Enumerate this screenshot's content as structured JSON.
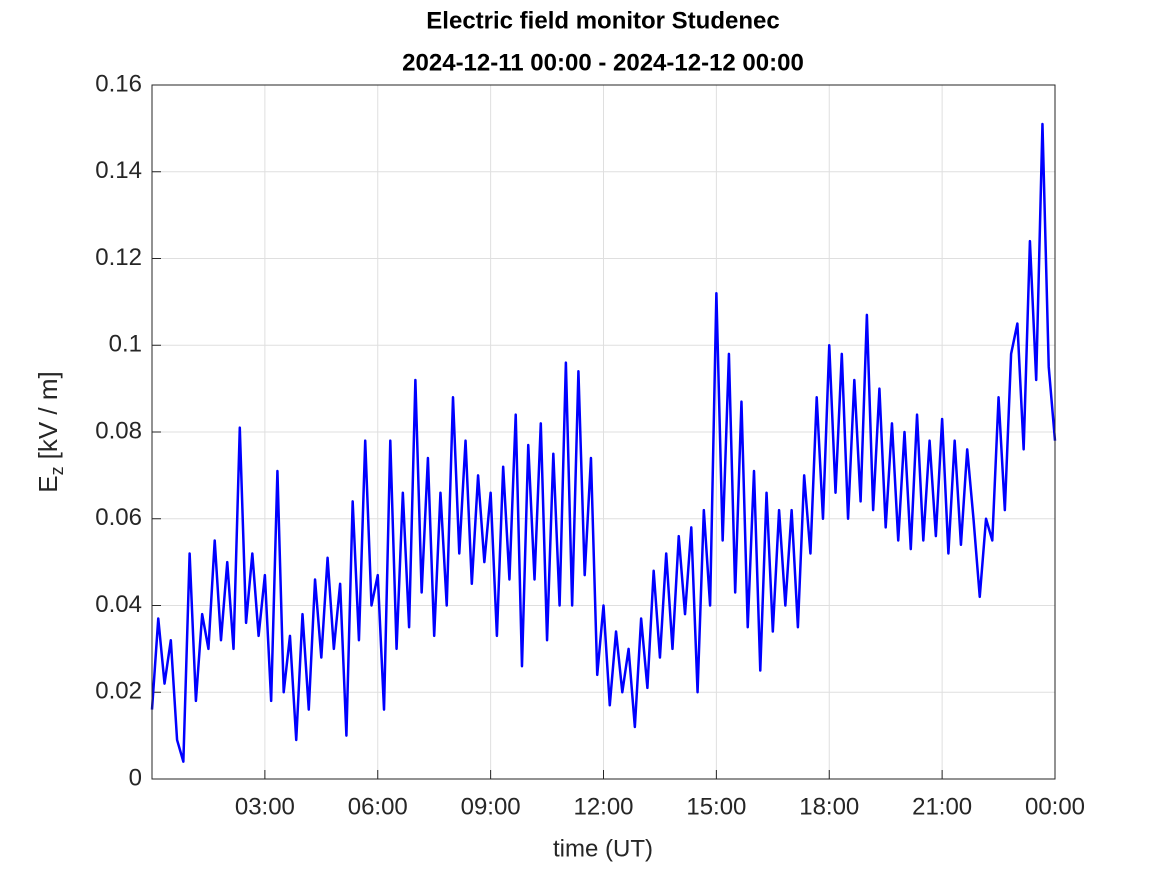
{
  "chart_data": {
    "type": "line",
    "title": "Electric field monitor Studenec",
    "subtitle": "2024-12-11 00:00 - 2024-12-12 00:00",
    "xlabel": "time (UT)",
    "ylabel": "E",
    "ylabel_sub": "z",
    "ylabel_unit": "[kV / m]",
    "color": "#0000ff",
    "grid": true,
    "xlim": [
      0,
      1440
    ],
    "xticks": [
      {
        "value": 180,
        "label": "03:00"
      },
      {
        "value": 360,
        "label": "06:00"
      },
      {
        "value": 540,
        "label": "09:00"
      },
      {
        "value": 720,
        "label": "12:00"
      },
      {
        "value": 900,
        "label": "15:00"
      },
      {
        "value": 1080,
        "label": "18:00"
      },
      {
        "value": 1260,
        "label": "21:00"
      },
      {
        "value": 1440,
        "label": "00:00"
      }
    ],
    "ylim": [
      0,
      0.16
    ],
    "yticks": [
      0,
      0.02,
      0.04,
      0.06,
      0.08,
      0.1,
      0.12,
      0.14,
      0.16
    ],
    "x": [
      0,
      10,
      20,
      30,
      40,
      50,
      60,
      70,
      80,
      90,
      100,
      110,
      120,
      130,
      140,
      150,
      160,
      170,
      180,
      190,
      200,
      210,
      220,
      230,
      240,
      250,
      260,
      270,
      280,
      290,
      300,
      310,
      320,
      330,
      340,
      350,
      360,
      370,
      380,
      390,
      400,
      410,
      420,
      430,
      440,
      450,
      460,
      470,
      480,
      490,
      500,
      510,
      520,
      530,
      540,
      550,
      560,
      570,
      580,
      590,
      600,
      610,
      620,
      630,
      640,
      650,
      660,
      670,
      680,
      690,
      700,
      710,
      720,
      730,
      740,
      750,
      760,
      770,
      780,
      790,
      800,
      810,
      820,
      830,
      840,
      850,
      860,
      870,
      880,
      890,
      900,
      910,
      920,
      930,
      940,
      950,
      960,
      970,
      980,
      990,
      1000,
      1010,
      1020,
      1030,
      1040,
      1050,
      1060,
      1070,
      1080,
      1090,
      1100,
      1110,
      1120,
      1130,
      1140,
      1150,
      1160,
      1170,
      1180,
      1190,
      1200,
      1210,
      1220,
      1230,
      1240,
      1250,
      1260,
      1270,
      1280,
      1290,
      1300,
      1310,
      1320,
      1330,
      1340,
      1350,
      1360,
      1370,
      1380,
      1390,
      1400,
      1410,
      1420,
      1430,
      1440
    ],
    "values": [
      0.016,
      0.037,
      0.022,
      0.032,
      0.009,
      0.004,
      0.052,
      0.018,
      0.038,
      0.03,
      0.055,
      0.032,
      0.05,
      0.03,
      0.081,
      0.036,
      0.052,
      0.033,
      0.047,
      0.018,
      0.071,
      0.02,
      0.033,
      0.009,
      0.038,
      0.016,
      0.046,
      0.028,
      0.051,
      0.03,
      0.045,
      0.01,
      0.064,
      0.032,
      0.078,
      0.04,
      0.047,
      0.016,
      0.078,
      0.03,
      0.066,
      0.035,
      0.092,
      0.043,
      0.074,
      0.033,
      0.066,
      0.04,
      0.088,
      0.052,
      0.078,
      0.045,
      0.07,
      0.05,
      0.066,
      0.033,
      0.072,
      0.046,
      0.084,
      0.026,
      0.077,
      0.046,
      0.082,
      0.032,
      0.075,
      0.04,
      0.096,
      0.04,
      0.094,
      0.047,
      0.074,
      0.024,
      0.04,
      0.017,
      0.034,
      0.02,
      0.03,
      0.012,
      0.037,
      0.021,
      0.048,
      0.028,
      0.052,
      0.03,
      0.056,
      0.038,
      0.058,
      0.02,
      0.062,
      0.04,
      0.112,
      0.055,
      0.098,
      0.043,
      0.087,
      0.035,
      0.071,
      0.025,
      0.066,
      0.034,
      0.062,
      0.04,
      0.062,
      0.035,
      0.07,
      0.052,
      0.088,
      0.06,
      0.1,
      0.066,
      0.098,
      0.06,
      0.092,
      0.064,
      0.107,
      0.062,
      0.09,
      0.058,
      0.082,
      0.055,
      0.08,
      0.053,
      0.084,
      0.055,
      0.078,
      0.056,
      0.083,
      0.052,
      0.078,
      0.054,
      0.076,
      0.06,
      0.042,
      0.06,
      0.055,
      0.088,
      0.062,
      0.098,
      0.105,
      0.076,
      0.124,
      0.092,
      0.151,
      0.095,
      0.078
    ]
  }
}
